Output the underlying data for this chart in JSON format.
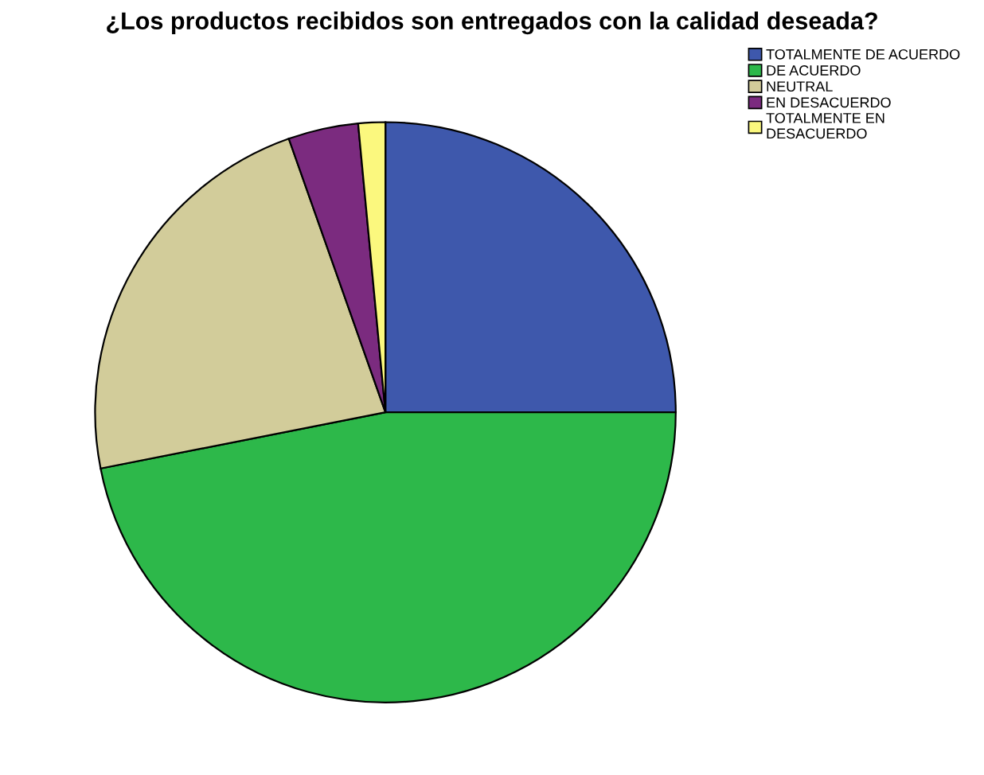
{
  "chart_data": {
    "type": "pie",
    "title": "¿Los productos recibidos son entregados con la calidad deseada?",
    "categories": [
      "TOTALMENTE DE ACUERDO",
      "DE ACUERDO",
      "NEUTRAL",
      "EN DESACUERDO",
      "TOTALMENTE EN\nDESACUERDO"
    ],
    "values": [
      25.0,
      46.9,
      22.7,
      3.9,
      1.5
    ],
    "colors": [
      "#3e58ac",
      "#2db84a",
      "#d2cc9a",
      "#7b2b7f",
      "#fbf87e"
    ],
    "legend": "top right"
  }
}
